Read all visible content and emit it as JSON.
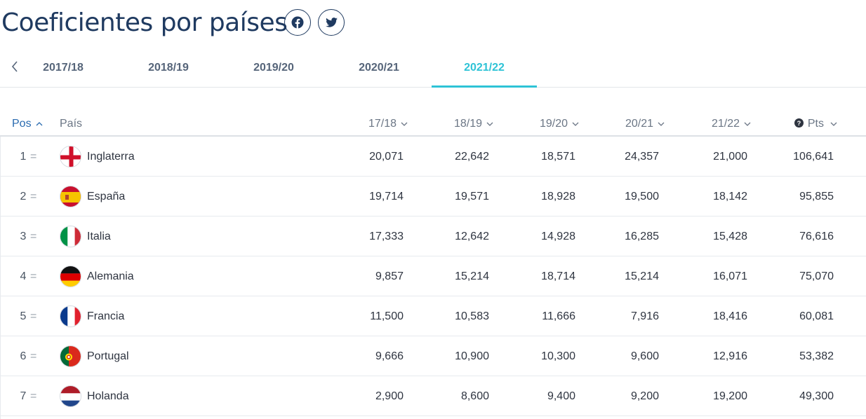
{
  "page": {
    "title": "Coeficientes por países",
    "social": [
      {
        "icon": "facebook-icon"
      },
      {
        "icon": "twitter-icon"
      }
    ]
  },
  "tabs": {
    "prev_icon": "chevron-left-icon",
    "items": [
      {
        "label": "2017/18"
      },
      {
        "label": "2018/19"
      },
      {
        "label": "2019/20"
      },
      {
        "label": "2020/21"
      },
      {
        "label": "2021/22",
        "active": true
      }
    ],
    "accent_color": "#2ec3d6"
  },
  "table": {
    "headers": {
      "pos": "Pos",
      "country": "País",
      "cols": [
        "17/18",
        "18/19",
        "19/20",
        "20/21",
        "21/22"
      ],
      "pts": "Pts"
    },
    "rows": [
      {
        "rank": "1",
        "change": "=",
        "country": "Inglaterra",
        "flag": "england-flag-icon",
        "values": [
          "20,071",
          "22,642",
          "18,571",
          "24,357",
          "21,000"
        ],
        "pts": "106,641"
      },
      {
        "rank": "2",
        "change": "=",
        "country": "España",
        "flag": "spain-flag-icon",
        "values": [
          "19,714",
          "19,571",
          "18,928",
          "19,500",
          "18,142"
        ],
        "pts": "95,855"
      },
      {
        "rank": "3",
        "change": "=",
        "country": "Italia",
        "flag": "italy-flag-icon",
        "values": [
          "17,333",
          "12,642",
          "14,928",
          "16,285",
          "15,428"
        ],
        "pts": "76,616"
      },
      {
        "rank": "4",
        "change": "=",
        "country": "Alemania",
        "flag": "germany-flag-icon",
        "values": [
          "9,857",
          "15,214",
          "18,714",
          "15,214",
          "16,071"
        ],
        "pts": "75,070"
      },
      {
        "rank": "5",
        "change": "=",
        "country": "Francia",
        "flag": "france-flag-icon",
        "values": [
          "11,500",
          "10,583",
          "11,666",
          "7,916",
          "18,416"
        ],
        "pts": "60,081"
      },
      {
        "rank": "6",
        "change": "=",
        "country": "Portugal",
        "flag": "portugal-flag-icon",
        "values": [
          "9,666",
          "10,900",
          "10,300",
          "9,600",
          "12,916"
        ],
        "pts": "53,382"
      },
      {
        "rank": "7",
        "change": "=",
        "country": "Holanda",
        "flag": "netherlands-flag-icon",
        "values": [
          "2,900",
          "8,600",
          "9,400",
          "9,200",
          "19,200"
        ],
        "pts": "49,300"
      }
    ]
  }
}
